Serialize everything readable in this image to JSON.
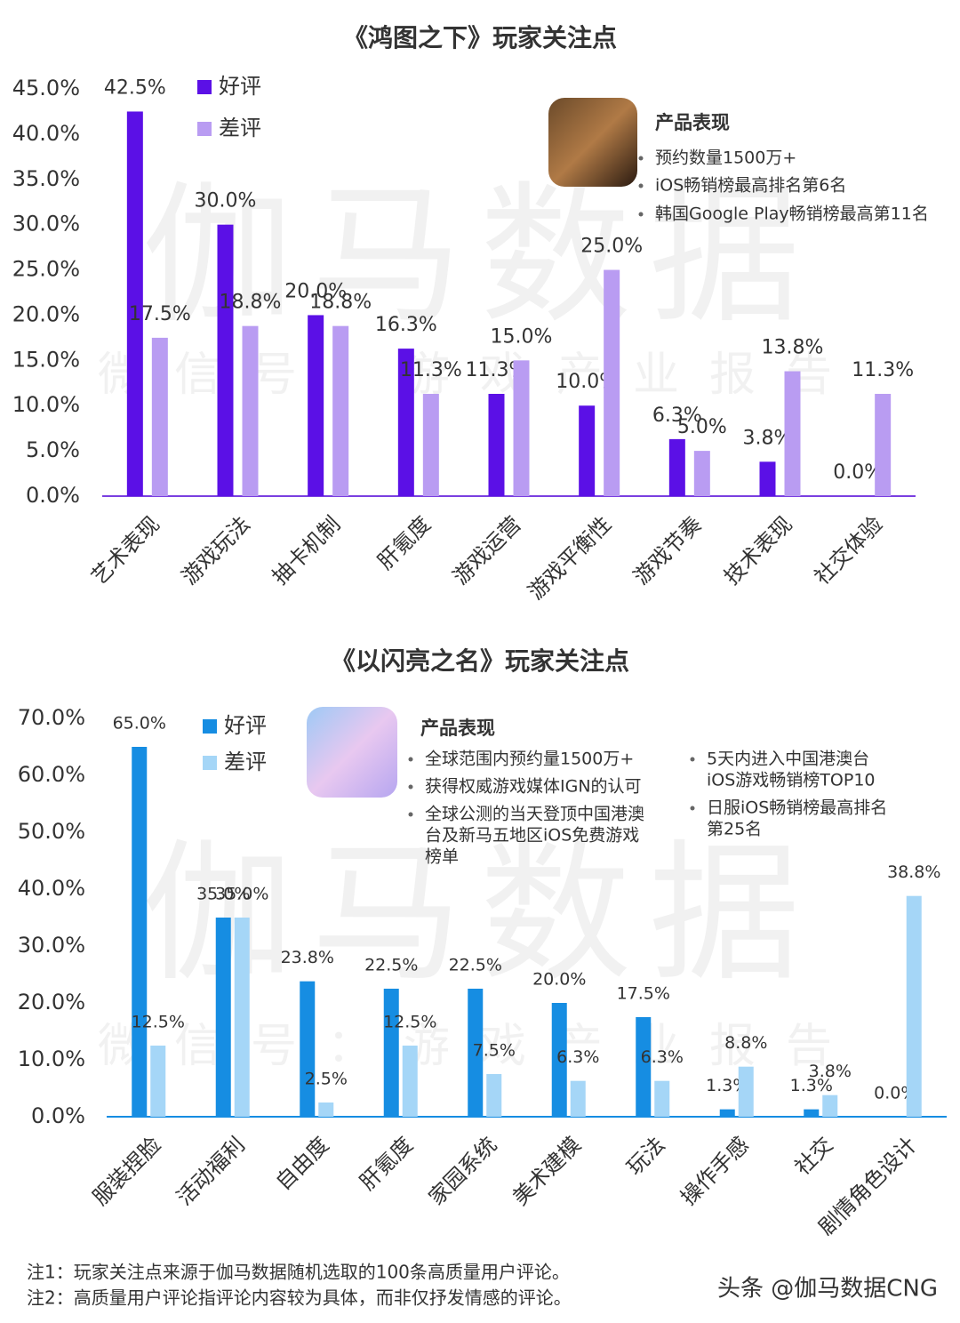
{
  "chart_data": [
    {
      "type": "bar",
      "title": "《鸿图之下》玩家关注点",
      "categories": [
        "艺术表现",
        "游戏玩法",
        "抽卡机制",
        "肝氪度",
        "游戏运营",
        "游戏平衡性",
        "游戏节奏",
        "技术表现",
        "社交体验"
      ],
      "series": [
        {
          "name": "好评",
          "color": "#5b10e6",
          "values": [
            42.5,
            30.0,
            20.0,
            16.3,
            11.3,
            10.0,
            6.3,
            3.8,
            0.0
          ],
          "value_labels": [
            "42.5%",
            "30.0%",
            "20.0%",
            "16.3%",
            "11.3%",
            "10.0%",
            "6.3%",
            "3.8%",
            "0.0%"
          ]
        },
        {
          "name": "差评",
          "color": "#b99cf2",
          "values": [
            17.5,
            18.8,
            18.8,
            11.3,
            15.0,
            25.0,
            5.0,
            13.8,
            11.3
          ],
          "value_labels": [
            "17.5%",
            "18.8%",
            "18.8%",
            "11.3%",
            "15.0%",
            "25.0%",
            "5.0%",
            "13.8%",
            "11.3%"
          ]
        }
      ],
      "ylim": [
        0,
        45
      ],
      "yticks": [
        {
          "value": 0,
          "label": "0.0%"
        },
        {
          "value": 5,
          "label": "5.0%"
        },
        {
          "value": 10,
          "label": "10.0%"
        },
        {
          "value": 15,
          "label": "15.0%"
        },
        {
          "value": 20,
          "label": "20.0%"
        },
        {
          "value": 25,
          "label": "25.0%"
        },
        {
          "value": 30,
          "label": "30.0%"
        },
        {
          "value": 35,
          "label": "35.0%"
        },
        {
          "value": 40,
          "label": "40.0%"
        },
        {
          "value": 45,
          "label": "45.0%"
        }
      ],
      "panel": {
        "title": "产品表现",
        "items": [
          [
            "预约数量1500万+"
          ],
          [
            "iOS畅销榜最高排名第6名"
          ],
          [
            "韩国Google Play畅销榜最高第11名"
          ]
        ]
      },
      "watermark": [
        "伽马数据",
        "微信号：游戏产业报告"
      ]
    },
    {
      "type": "bar",
      "title": "《以闪亮之名》玩家关注点",
      "categories": [
        "服装捏脸",
        "活动福利",
        "自由度",
        "肝氪度",
        "家园系统",
        "美术建模",
        "玩法",
        "操作手感",
        "社交",
        "剧情角色设计"
      ],
      "series": [
        {
          "name": "好评",
          "color": "#168de2",
          "values": [
            65.0,
            35.0,
            23.8,
            22.5,
            22.5,
            20.0,
            17.5,
            1.3,
            1.3,
            0.0
          ],
          "value_labels": [
            "65.0%",
            "35.0%",
            "23.8%",
            "22.5%",
            "22.5%",
            "20.0%",
            "17.5%",
            "1.3%",
            "1.3%",
            "0.0%"
          ]
        },
        {
          "name": "差评",
          "color": "#a5d6f7",
          "values": [
            12.5,
            35.0,
            2.5,
            12.5,
            7.5,
            6.3,
            6.3,
            8.8,
            3.8,
            38.8
          ],
          "value_labels": [
            "12.5%",
            "35.0%",
            "2.5%",
            "12.5%",
            "7.5%",
            "6.3%",
            "6.3%",
            "8.8%",
            "3.8%",
            "38.8%"
          ]
        }
      ],
      "ylim": [
        0,
        70
      ],
      "yticks": [
        {
          "value": 0,
          "label": "0.0%"
        },
        {
          "value": 10,
          "label": "10.0%"
        },
        {
          "value": 20,
          "label": "20.0%"
        },
        {
          "value": 30,
          "label": "30.0%"
        },
        {
          "value": 40,
          "label": "40.0%"
        },
        {
          "value": 50,
          "label": "50.0%"
        },
        {
          "value": 60,
          "label": "60.0%"
        },
        {
          "value": 70,
          "label": "70.0%"
        }
      ],
      "panel": {
        "title": "产品表现",
        "items": [
          [
            "全球范围内预约量1500万+"
          ],
          [
            "获得权威游戏媒体IGN的认可"
          ],
          [
            "全球公测的当天登顶中国港澳",
            "台及新马五地区iOS免费游戏",
            "榜单"
          ],
          [
            "5天内进入中国港澳台",
            "iOS游戏畅销榜TOP10"
          ],
          [
            "日服iOS畅销榜最高排名",
            "第25名"
          ]
        ]
      },
      "watermark": [
        "伽马数据",
        "微信号：游戏产业报告"
      ]
    }
  ],
  "notes": [
    "注1：玩家关注点来源于伽马数据随机选取的100条高质量用户评论。",
    "注2：高质量用户评论指评论内容较为具体，而非仅抒发情感的评论。"
  ],
  "footer": "头条 @伽马数据CNG"
}
